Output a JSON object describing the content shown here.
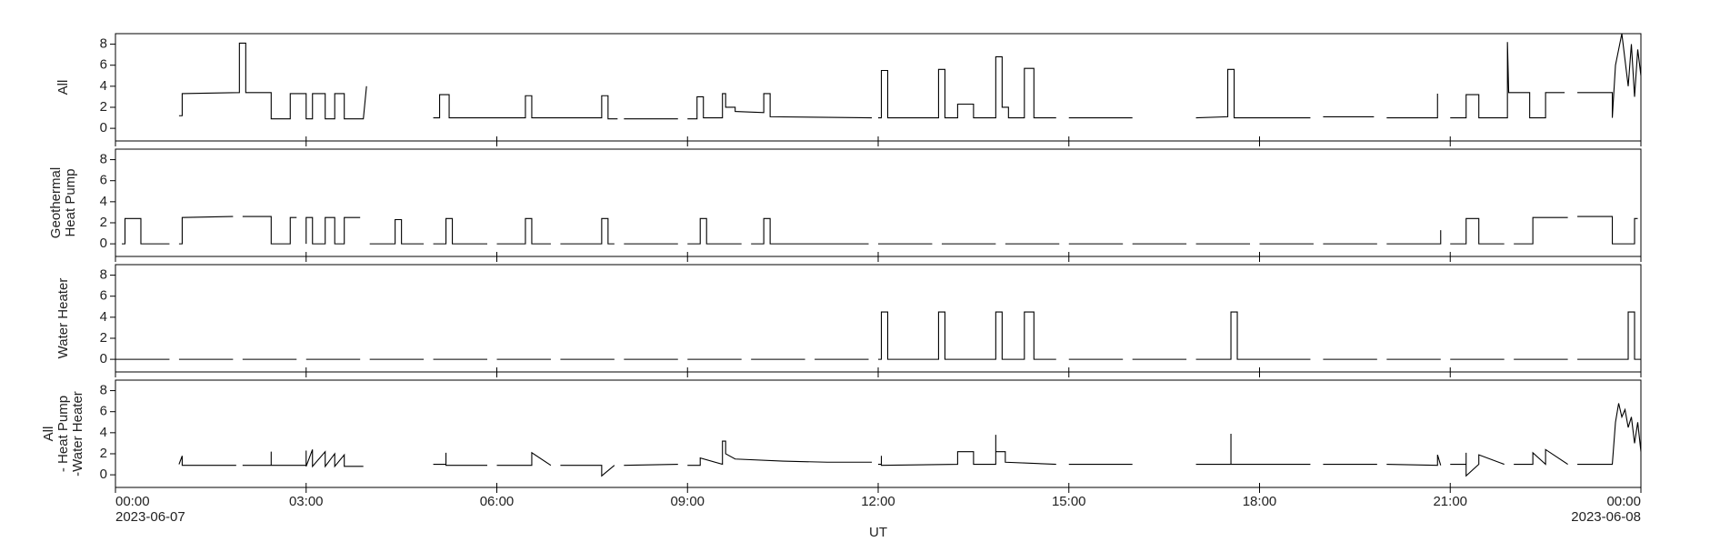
{
  "chart_data": [
    {
      "type": "line",
      "ylabel": [
        "All"
      ],
      "xlim": [
        0,
        24
      ],
      "ylim": [
        -1.2,
        9.0
      ],
      "yticks": [
        0,
        2,
        4,
        6,
        8
      ],
      "xticks": [
        0,
        3,
        6,
        9,
        12,
        15,
        18,
        21,
        24
      ],
      "series": [
        {
          "color": "#000000",
          "x": [
            1.0,
            1.05,
            1.05,
            1.95,
            1.95,
            2.05,
            2.05,
            2.45,
            2.45,
            2.75,
            2.75,
            3.0,
            3.0,
            3.1,
            3.1,
            3.3,
            3.3,
            3.45,
            3.45,
            3.6,
            3.6,
            3.9,
            3.95,
            4.5,
            5.0,
            5.1,
            5.1,
            5.25,
            5.25,
            6.45,
            6.45,
            6.55,
            6.55,
            7.65,
            7.65,
            7.75,
            7.75,
            7.9,
            7.95,
            8.0,
            8.85,
            8.9,
            9.0,
            9.15,
            9.15,
            9.25,
            9.25,
            9.55,
            9.55,
            9.6,
            9.6,
            9.75,
            9.75,
            10.2,
            10.2,
            10.3,
            10.3,
            11.9,
            11.95,
            12.0,
            12.05,
            12.05,
            12.15,
            12.15,
            12.95,
            12.95,
            13.05,
            13.05,
            13.25,
            13.25,
            13.5,
            13.5,
            13.85,
            13.85,
            13.95,
            13.95,
            14.05,
            14.05,
            14.3,
            14.3,
            14.45,
            14.45,
            14.8,
            14.9,
            15.0,
            16.0,
            16.5,
            17.0,
            17.5,
            17.5,
            17.6,
            17.6,
            18.8,
            18.9,
            19.0,
            19.8,
            19.9,
            20.0,
            20.8,
            20.8,
            20.9,
            21.0,
            21.25,
            21.25,
            21.45,
            21.45,
            21.9,
            21.9,
            21.92,
            22.25,
            22.25,
            22.5,
            22.5,
            22.8,
            22.9,
            23.0,
            23.55,
            23.55,
            23.6,
            23.7,
            23.8,
            23.85,
            23.9,
            23.95,
            24.0
          ],
          "values": [
            1.2,
            1.2,
            3.3,
            3.4,
            8.1,
            8.1,
            3.4,
            3.4,
            0.9,
            0.9,
            3.3,
            3.3,
            0.9,
            0.9,
            3.3,
            3.3,
            0.9,
            0.9,
            3.3,
            3.3,
            0.9,
            0.9,
            4.0,
            null,
            1.0,
            1.0,
            3.2,
            3.2,
            1.0,
            1.0,
            3.1,
            3.1,
            1.0,
            1.0,
            3.1,
            3.1,
            0.9,
            0.9,
            null,
            0.9,
            0.9,
            null,
            0.9,
            0.9,
            3.0,
            3.0,
            1.0,
            1.0,
            3.3,
            3.3,
            2.0,
            2.0,
            1.6,
            1.5,
            3.3,
            3.3,
            1.1,
            1.0,
            null,
            1.0,
            1.0,
            5.5,
            5.5,
            1.0,
            1.0,
            5.6,
            5.6,
            1.0,
            1.0,
            2.3,
            2.3,
            1.0,
            1.0,
            6.8,
            6.8,
            2.0,
            2.0,
            1.0,
            1.0,
            5.7,
            5.7,
            1.0,
            1.0,
            null,
            1.0,
            1.0,
            null,
            1.0,
            1.1,
            5.6,
            5.6,
            1.0,
            1.0,
            null,
            1.1,
            1.1,
            null,
            1.0,
            1.0,
            3.3,
            null,
            1.0,
            1.0,
            3.2,
            3.2,
            1.0,
            1.0,
            8.2,
            3.4,
            3.4,
            1.0,
            1.0,
            3.4,
            3.4,
            null,
            3.4,
            3.4,
            1.0,
            6.0,
            9.0,
            4.0,
            8.0,
            3.0,
            7.5,
            5.0
          ]
        }
      ]
    },
    {
      "type": "line",
      "ylabel": [
        "Geothermal",
        "Heat Pump"
      ],
      "xlim": [
        0,
        24
      ],
      "ylim": [
        -1.2,
        9.0
      ],
      "yticks": [
        0,
        2,
        4,
        6,
        8
      ],
      "xticks": [
        0,
        3,
        6,
        9,
        12,
        15,
        18,
        21,
        24
      ],
      "series": [
        {
          "color": "#000000",
          "x": [
            0.1,
            0.15,
            0.15,
            0.4,
            0.4,
            0.85,
            0.92,
            1.0,
            1.05,
            1.05,
            1.85,
            1.92,
            2.0,
            2.45,
            2.45,
            2.75,
            2.75,
            2.85,
            2.92,
            3.0,
            3.0,
            3.1,
            3.1,
            3.3,
            3.3,
            3.45,
            3.45,
            3.6,
            3.6,
            3.85,
            3.92,
            4.0,
            4.4,
            4.4,
            4.5,
            4.5,
            4.85,
            4.92,
            5.0,
            5.2,
            5.2,
            5.3,
            5.3,
            5.85,
            5.92,
            6.0,
            6.45,
            6.45,
            6.55,
            6.55,
            6.85,
            6.92,
            7.0,
            7.65,
            7.65,
            7.75,
            7.75,
            7.85,
            7.92,
            8.0,
            8.85,
            8.92,
            9.0,
            9.2,
            9.2,
            9.3,
            9.3,
            9.85,
            9.92,
            10.0,
            10.2,
            10.2,
            10.3,
            10.3,
            11.85,
            11.92,
            12.0,
            12.85,
            12.92,
            13.0,
            13.85,
            13.92,
            14.0,
            14.85,
            14.92,
            15.0,
            15.85,
            15.92,
            16.0,
            16.85,
            16.92,
            17.0,
            17.85,
            17.92,
            18.0,
            18.85,
            18.92,
            19.0,
            19.85,
            19.92,
            20.0,
            20.85,
            20.85,
            20.92,
            21.0,
            21.25,
            21.25,
            21.45,
            21.45,
            21.85,
            21.92,
            22.0,
            22.3,
            22.3,
            22.85,
            22.92,
            23.0,
            23.55,
            23.55,
            23.9,
            23.9,
            23.95
          ],
          "values": [
            0,
            0,
            2.4,
            2.4,
            0,
            0,
            null,
            0,
            0,
            2.5,
            2.6,
            null,
            2.6,
            2.6,
            0,
            0,
            2.5,
            2.5,
            null,
            0,
            2.5,
            2.5,
            0,
            0,
            2.5,
            2.5,
            0,
            0,
            2.5,
            2.5,
            null,
            0,
            0,
            2.3,
            2.3,
            0,
            0,
            null,
            0,
            0,
            2.4,
            2.4,
            0,
            0,
            null,
            0,
            0,
            2.4,
            2.4,
            0,
            0,
            null,
            0,
            0,
            2.4,
            2.4,
            0,
            0,
            null,
            0,
            0,
            null,
            0,
            0,
            2.4,
            2.4,
            0,
            0,
            null,
            0,
            0,
            2.4,
            2.4,
            0,
            0,
            null,
            0,
            0,
            null,
            0,
            0,
            null,
            0,
            0,
            null,
            0,
            0,
            null,
            0,
            0,
            null,
            0,
            0,
            null,
            0,
            0,
            null,
            0,
            0,
            null,
            0,
            0,
            1.3,
            null,
            0,
            0,
            2.4,
            2.4,
            0,
            0,
            null,
            0,
            0,
            2.5,
            2.5,
            null,
            2.6,
            2.6,
            0,
            0,
            2.4,
            2.4
          ]
        }
      ]
    },
    {
      "type": "line",
      "ylabel": [
        "Water Heater"
      ],
      "xlim": [
        0,
        24
      ],
      "ylim": [
        -1.2,
        9.0
      ],
      "yticks": [
        0,
        2,
        4,
        6,
        8
      ],
      "xticks": [
        0,
        3,
        6,
        9,
        12,
        15,
        18,
        21,
        24
      ],
      "series": [
        {
          "color": "#000000",
          "x": [
            0,
            0.85,
            0.92,
            1.0,
            1.85,
            1.92,
            2.0,
            2.85,
            2.92,
            3.0,
            3.85,
            3.92,
            4.0,
            4.85,
            4.92,
            5.0,
            5.85,
            5.92,
            6.0,
            6.85,
            6.92,
            7.0,
            7.85,
            7.92,
            8.0,
            8.85,
            8.92,
            9.0,
            9.85,
            9.92,
            10.0,
            10.85,
            10.92,
            11.0,
            11.85,
            11.92,
            12.0,
            12.05,
            12.05,
            12.15,
            12.15,
            12.95,
            12.95,
            13.05,
            13.05,
            13.85,
            13.85,
            13.95,
            13.95,
            14.3,
            14.3,
            14.45,
            14.45,
            14.8,
            14.9,
            15.0,
            15.85,
            15.92,
            16.0,
            16.85,
            16.92,
            17.0,
            17.55,
            17.55,
            17.65,
            17.65,
            18.8,
            18.9,
            19.0,
            19.85,
            19.92,
            20.0,
            20.85,
            20.92,
            21.0,
            21.85,
            21.92,
            22.0,
            22.85,
            22.92,
            23.0,
            23.8,
            23.8,
            23.9,
            23.9,
            24.0
          ],
          "values": [
            0,
            0,
            null,
            0,
            0,
            null,
            0,
            0,
            null,
            0,
            0,
            null,
            0,
            0,
            null,
            0,
            0,
            null,
            0,
            0,
            null,
            0,
            0,
            null,
            0,
            0,
            null,
            0,
            0,
            null,
            0,
            0,
            null,
            0,
            0,
            null,
            0,
            0,
            4.5,
            4.5,
            0,
            0,
            4.5,
            4.5,
            0,
            0,
            4.5,
            4.5,
            0,
            0,
            4.5,
            4.5,
            0,
            0,
            null,
            0,
            0,
            null,
            0,
            0,
            null,
            0,
            0,
            4.5,
            4.5,
            0,
            0,
            null,
            0,
            0,
            null,
            0,
            0,
            null,
            0,
            0,
            null,
            0,
            0,
            null,
            0,
            0,
            4.5,
            4.5,
            0,
            0
          ]
        }
      ]
    },
    {
      "type": "line",
      "ylabel": [
        "All",
        "- Heat Pump",
        "-Water Heater"
      ],
      "xlim": [
        0,
        24
      ],
      "ylim": [
        -1.2,
        9.0
      ],
      "yticks": [
        0,
        2,
        4,
        6,
        8
      ],
      "xticks": [
        {
          "value": 0,
          "label": "00:00"
        },
        {
          "value": 3,
          "label": "03:00"
        },
        {
          "value": 6,
          "label": "06:00"
        },
        {
          "value": 9,
          "label": "09:00"
        },
        {
          "value": 12,
          "label": "12:00"
        },
        {
          "value": 15,
          "label": "15:00"
        },
        {
          "value": 18,
          "label": "18:00"
        },
        {
          "value": 21,
          "label": "21:00"
        },
        {
          "value": 24,
          "label": "00:00"
        }
      ],
      "xlabel": "UT",
      "annotations": [
        {
          "x": 0,
          "text": "2023-06-07"
        },
        {
          "x": 24,
          "text": "2023-06-08"
        }
      ],
      "series": [
        {
          "color": "#000000",
          "x": [
            1.0,
            1.05,
            1.05,
            1.9,
            1.95,
            2.0,
            2.45,
            2.45,
            2.45,
            3.0,
            3.0,
            3.0,
            3.1,
            3.1,
            3.3,
            3.3,
            3.45,
            3.45,
            3.6,
            3.6,
            3.9,
            4.5,
            5.0,
            5.2,
            5.2,
            5.2,
            5.85,
            5.92,
            6.0,
            6.55,
            6.55,
            6.85,
            6.92,
            7.0,
            7.65,
            7.65,
            7.85,
            7.92,
            8.0,
            8.85,
            8.92,
            9.0,
            9.2,
            9.2,
            9.55,
            9.55,
            9.6,
            9.6,
            9.75,
            10.5,
            11.2,
            11.9,
            11.95,
            12.0,
            12.05,
            12.05,
            12.05,
            13.25,
            13.25,
            13.5,
            13.5,
            13.85,
            13.85,
            13.85,
            14.0,
            14.0,
            14.8,
            14.9,
            15.0,
            16.0,
            16.5,
            17.0,
            17.55,
            17.55,
            17.55,
            18.8,
            18.9,
            19.0,
            19.85,
            19.92,
            20.0,
            20.8,
            20.8,
            20.85,
            20.92,
            21.0,
            21.25,
            21.25,
            21.25,
            21.45,
            21.45,
            21.85,
            21.92,
            22.0,
            22.3,
            22.3,
            22.5,
            22.5,
            22.85,
            22.92,
            23.0,
            23.55,
            23.6,
            23.65,
            23.7,
            23.75,
            23.8,
            23.85,
            23.9,
            23.95,
            24.0
          ],
          "values": [
            1.0,
            1.8,
            0.9,
            0.9,
            null,
            0.9,
            0.9,
            2.2,
            0.9,
            0.9,
            2.3,
            0.8,
            2.4,
            0.8,
            2.2,
            0.8,
            2.0,
            0.8,
            1.9,
            0.8,
            0.8,
            null,
            1.0,
            1.0,
            2.1,
            0.9,
            0.9,
            null,
            0.9,
            0.9,
            2.1,
            0.9,
            null,
            0.9,
            0.9,
            -0.1,
            0.9,
            null,
            0.9,
            1.0,
            null,
            0.9,
            0.9,
            1.6,
            1.0,
            3.2,
            3.2,
            2.0,
            1.5,
            1.3,
            1.2,
            1.2,
            null,
            1.0,
            1.0,
            1.8,
            0.9,
            1.0,
            2.2,
            2.2,
            1.0,
            1.0,
            3.8,
            2.2,
            2.2,
            1.2,
            1.0,
            null,
            1.0,
            1.0,
            null,
            1.0,
            1.0,
            3.9,
            1.0,
            1.0,
            null,
            1.0,
            1.0,
            null,
            1.0,
            0.9,
            1.9,
            0.9,
            null,
            1.0,
            1.0,
            2.1,
            -0.1,
            1.0,
            1.9,
            1.0,
            null,
            1.0,
            1.0,
            2.1,
            1.0,
            2.4,
            1.0,
            null,
            1.0,
            1.0,
            5.0,
            6.8,
            5.5,
            6.2,
            4.5,
            5.5,
            3.0,
            5.0,
            2.2
          ]
        }
      ]
    }
  ]
}
